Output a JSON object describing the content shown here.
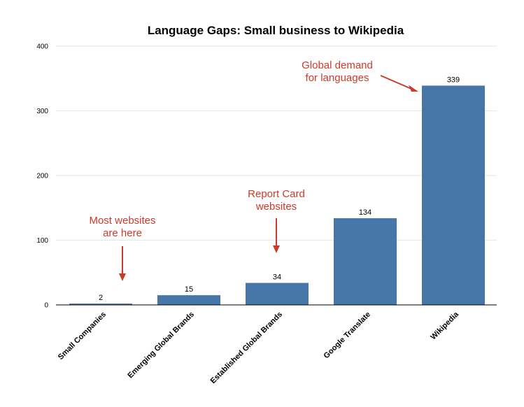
{
  "chart_data": {
    "type": "bar",
    "title": "Language Gaps: Small business to Wikipedia",
    "xlabel": "",
    "ylabel": "",
    "ylim": [
      0,
      400
    ],
    "yticks": [
      0,
      100,
      200,
      300,
      400
    ],
    "grid": true,
    "categories": [
      "Small Companies",
      "Emerging Global Brands",
      "Established Global Brands",
      "Google Translate",
      "Wikipedia"
    ],
    "values": [
      2,
      15,
      34,
      134,
      339
    ],
    "bar_color": "#4777a8",
    "annotations": [
      {
        "lines": [
          "Most websites",
          "are here"
        ],
        "target_category": "Small Companies",
        "color": "#cc3a2a"
      },
      {
        "lines": [
          "Report Card",
          "websites"
        ],
        "target_category": "Established Global Brands",
        "color": "#cc3a2a"
      },
      {
        "lines": [
          "Global demand",
          "for languages"
        ],
        "target_category": "Wikipedia",
        "color": "#cc3a2a"
      }
    ]
  }
}
